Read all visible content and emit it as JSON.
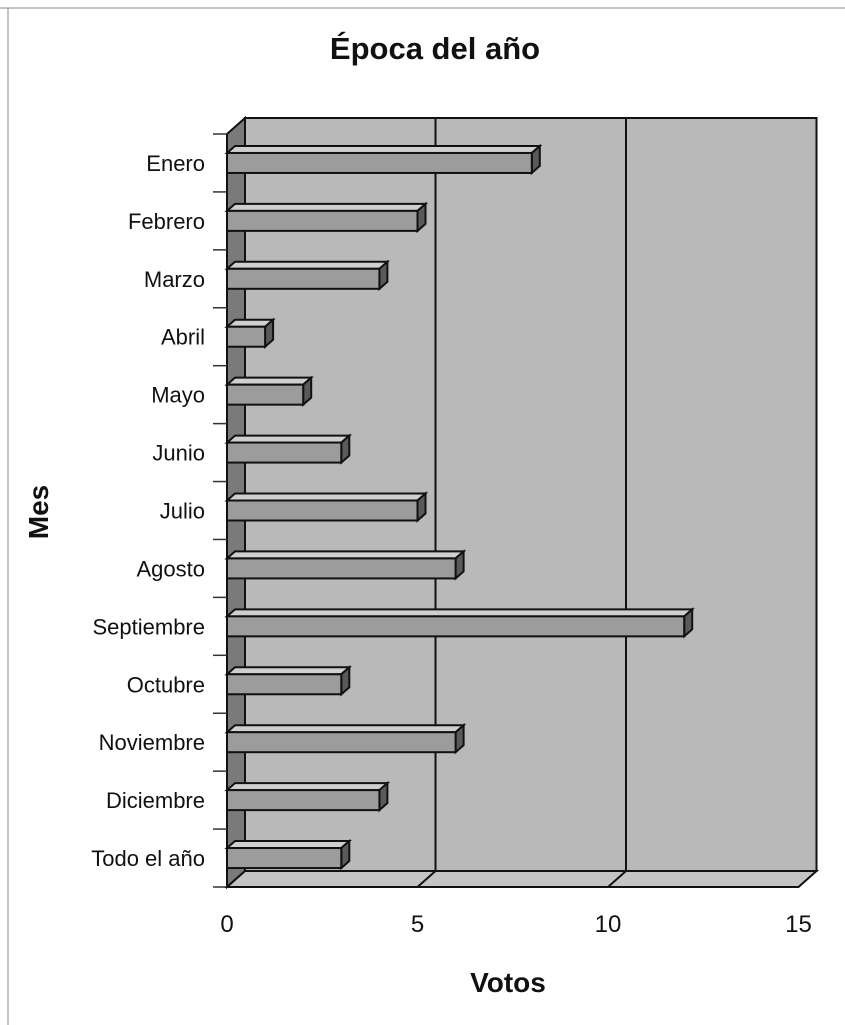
{
  "chart_data": {
    "type": "bar",
    "orientation": "horizontal",
    "style": "3d",
    "title": "Época del año",
    "xlabel": "Votos",
    "ylabel": "Mes",
    "categories": [
      "Enero",
      "Febrero",
      "Marzo",
      "Abril",
      "Mayo",
      "Junio",
      "Julio",
      "Agosto",
      "Septiembre",
      "Octubre",
      "Noviembre",
      "Diciembre",
      "Todo el año"
    ],
    "values": [
      8,
      5,
      4,
      1,
      2,
      3,
      5,
      6,
      12,
      3,
      6,
      4,
      3
    ],
    "xlim": [
      0,
      15
    ],
    "xticks": [
      "0",
      "5",
      "10",
      "15"
    ],
    "grid": "vertical",
    "legend": "none",
    "colors": {
      "plot_back_wall": "#b9b9b9",
      "plot_side_wall": "#7a7a7a",
      "plot_floor": "#c4c4c4",
      "bar_front": "#9c9c9c",
      "bar_top": "#cfcfcf",
      "bar_end": "#5a5a5a",
      "line": "#111111"
    }
  }
}
